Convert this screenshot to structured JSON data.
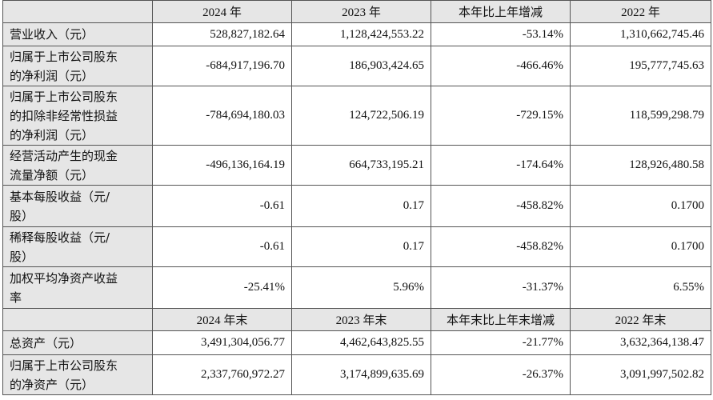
{
  "table": {
    "header1": [
      "2024 年",
      "2023 年",
      "本年比上年增减",
      "2022 年"
    ],
    "rows1": [
      [
        "营业收入（元）",
        "528,827,182.64",
        "1,128,424,553.22",
        "-53.14%",
        "1,310,662,745.46"
      ],
      [
        "归属于上市公司股东的净利润（元）",
        "-684,917,196.70",
        "186,903,424.65",
        "-466.46%",
        "195,777,745.63"
      ],
      [
        "归属于上市公司股东的扣除非经常性损益的净利润（元）",
        "-784,694,180.03",
        "124,722,506.19",
        "-729.15%",
        "118,599,298.79"
      ],
      [
        "经营活动产生的现金流量净额（元）",
        "-496,136,164.19",
        "664,733,195.21",
        "-174.64%",
        "128,926,480.58"
      ],
      [
        "基本每股收益（元/股）",
        "-0.61",
        "0.17",
        "-458.82%",
        "0.1700"
      ],
      [
        "稀释每股收益（元/股）",
        "-0.61",
        "0.17",
        "-458.82%",
        "0.1700"
      ],
      [
        "加权平均净资产收益率",
        "-25.41%",
        "5.96%",
        "-31.37%",
        "6.55%"
      ]
    ],
    "header2": [
      "2024 年末",
      "2023 年末",
      "本年末比上年末增减",
      "2022 年末"
    ],
    "rows2": [
      [
        "总资产（元）",
        "3,491,304,056.77",
        "4,462,643,825.55",
        "-21.77%",
        "3,632,364,138.47"
      ],
      [
        "归属于上市公司股东的净资产（元）",
        "2,337,760,972.27",
        "3,174,899,635.69",
        "-26.37%",
        "3,091,997,502.82"
      ]
    ]
  }
}
